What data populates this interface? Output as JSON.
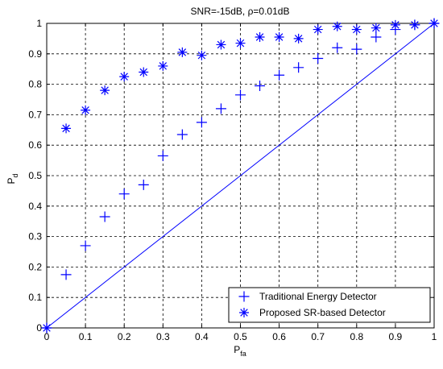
{
  "chart_data": {
    "type": "scatter",
    "title": "SNR=-15dB, ρ=0.01dB",
    "xlabel": {
      "main": "P",
      "sub": "fa"
    },
    "ylabel": {
      "main": "P",
      "sub": "d"
    },
    "xlim": [
      0,
      1
    ],
    "ylim": [
      0,
      1
    ],
    "x_ticks": [
      "0",
      "0.1",
      "0.2",
      "0.3",
      "0.4",
      "0.5",
      "0.6",
      "0.7",
      "0.8",
      "0.9",
      "1"
    ],
    "y_ticks": [
      "0",
      "0.1",
      "0.2",
      "0.3",
      "0.4",
      "0.5",
      "0.6",
      "0.7",
      "0.8",
      "0.9",
      "1"
    ],
    "grid": true,
    "legend_position": "bottom-right",
    "series": [
      {
        "name": "Traditional Energy Detector",
        "marker": "plus",
        "color": "#0000ff",
        "x": [
          0.05,
          0.1,
          0.15,
          0.2,
          0.25,
          0.3,
          0.35,
          0.4,
          0.45,
          0.5,
          0.55,
          0.6,
          0.65,
          0.7,
          0.75,
          0.8,
          0.85,
          0.9,
          0.95
        ],
        "y": [
          0.175,
          0.27,
          0.365,
          0.44,
          0.47,
          0.565,
          0.635,
          0.675,
          0.72,
          0.765,
          0.795,
          0.83,
          0.855,
          0.885,
          0.92,
          0.915,
          0.955,
          0.98,
          0.995
        ]
      },
      {
        "name": "Proposed SR-based Detector",
        "marker": "asterisk",
        "color": "#0000ff",
        "x": [
          0.05,
          0.1,
          0.15,
          0.2,
          0.25,
          0.3,
          0.35,
          0.4,
          0.45,
          0.5,
          0.55,
          0.6,
          0.65,
          0.7,
          0.75,
          0.8,
          0.85,
          0.9,
          0.95
        ],
        "y": [
          0.655,
          0.715,
          0.78,
          0.825,
          0.84,
          0.86,
          0.905,
          0.895,
          0.93,
          0.935,
          0.955,
          0.955,
          0.95,
          0.98,
          0.99,
          0.98,
          0.985,
          0.995,
          0.995
        ]
      }
    ],
    "reference_line": {
      "x": [
        0,
        1
      ],
      "y": [
        0,
        1
      ],
      "color": "#0000ff"
    },
    "extra_markers": [
      {
        "marker": "plus",
        "x": 0,
        "y": 0
      },
      {
        "marker": "asterisk",
        "x": 0,
        "y": 0
      },
      {
        "marker": "plus",
        "x": 1,
        "y": 1
      },
      {
        "marker": "asterisk",
        "x": 1,
        "y": 1
      }
    ]
  }
}
